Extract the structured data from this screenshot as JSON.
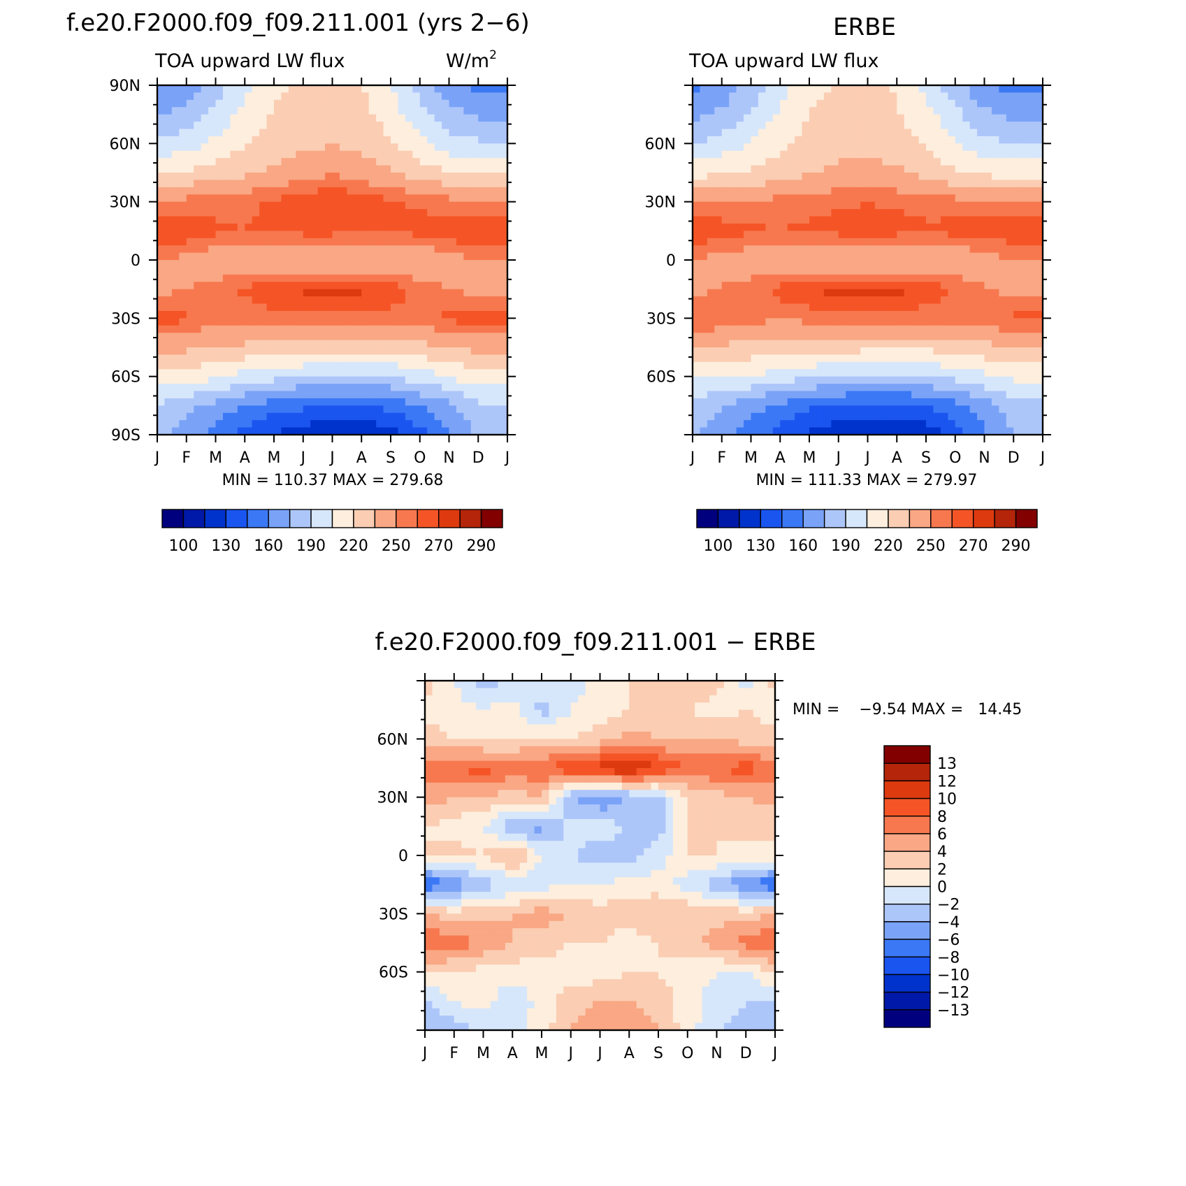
{
  "figure": {
    "panels": [
      {
        "id": "model",
        "title": "f.e20.F2000.f09_f09.211.001 (yrs 2−6)",
        "left_label": "TOA upward LW flux",
        "right_label": "W/m",
        "right_label_sup": "2",
        "lat_tick_labels": [
          "90N",
          "60N",
          "30N",
          "0",
          "30S",
          "60S",
          "90S"
        ],
        "month_labels": [
          "J",
          "F",
          "M",
          "A",
          "M",
          "J",
          "J",
          "A",
          "S",
          "O",
          "N",
          "D",
          "J"
        ],
        "stats_text": "MIN = 110.37 MAX = 279.68",
        "min": 110.37,
        "max": 279.68
      },
      {
        "id": "obs",
        "title": "ERBE",
        "left_label": "TOA upward LW flux",
        "right_label": "",
        "lat_tick_labels": [
          "",
          "60N",
          "30N",
          "0",
          "30S",
          "60S",
          ""
        ],
        "month_labels": [
          "J",
          "F",
          "M",
          "A",
          "M",
          "J",
          "J",
          "A",
          "S",
          "O",
          "N",
          "D",
          "J"
        ],
        "stats_text": "MIN = 111.33 MAX = 279.97",
        "min": 111.33,
        "max": 279.97
      },
      {
        "id": "diff",
        "title": "f.e20.F2000.f09_f09.211.001 − ERBE",
        "lat_tick_labels": [
          "",
          "60N",
          "30N",
          "0",
          "30S",
          "60S",
          ""
        ],
        "month_labels": [
          "J",
          "F",
          "M",
          "A",
          "M",
          "J",
          "J",
          "A",
          "S",
          "O",
          "N",
          "D",
          "J"
        ],
        "stats_text": "MIN =    −9.54 MAX =   14.45",
        "min": -9.54,
        "max": 14.45
      }
    ],
    "colorbar_main": {
      "levels": [
        100,
        115,
        130,
        145,
        160,
        175,
        190,
        205,
        220,
        235,
        250,
        260,
        270,
        280,
        290
      ],
      "labels": [
        "100",
        "130",
        "160",
        "190",
        "220",
        "250",
        "270",
        "290"
      ],
      "colors": [
        "#00007f",
        "#0019a8",
        "#0033cc",
        "#1a55f0",
        "#3b78f5",
        "#7aa3f7",
        "#adc6fa",
        "#d7e7fb",
        "#fdeedd",
        "#fbcdb3",
        "#f9a784",
        "#f7784f",
        "#f55526",
        "#dd3a10",
        "#b4250a",
        "#820000"
      ]
    },
    "colorbar_diff": {
      "labels": [
        "13",
        "12",
        "10",
        "8",
        "6",
        "4",
        "2",
        "0",
        "−2",
        "−4",
        "−6",
        "−8",
        "−10",
        "−12",
        "−13"
      ],
      "colors": [
        "#820000",
        "#b4250a",
        "#dd3a10",
        "#f55526",
        "#f7784f",
        "#f9a784",
        "#fbcdb3",
        "#fdeedd",
        "#d7e7fb",
        "#adc6fa",
        "#7aa3f7",
        "#3b78f5",
        "#1a55f0",
        "#0033cc",
        "#0019a8",
        "#00007f"
      ]
    }
  },
  "chart_data": [
    {
      "type": "heatmap",
      "panel": "model",
      "title": "f.e20.F2000.f09_f09.211.001 (yrs 2−6)",
      "subtitle_left": "TOA upward LW flux",
      "units": "W/m2",
      "x": [
        "J",
        "F",
        "M",
        "A",
        "M",
        "J",
        "J",
        "A",
        "S",
        "O",
        "N",
        "D",
        "J"
      ],
      "y": [
        90,
        75,
        60,
        45,
        30,
        15,
        0,
        -15,
        -30,
        -45,
        -60,
        -75,
        -90
      ],
      "xlim": [
        0,
        12
      ],
      "ylim": [
        -90,
        90
      ],
      "z": [
        [
          158,
          166,
          182,
          200,
          215,
          222,
          224,
          220,
          205,
          184,
          164,
          157,
          158
        ],
        [
          172,
          180,
          195,
          210,
          222,
          228,
          228,
          226,
          212,
          196,
          180,
          172,
          172
        ],
        [
          192,
          198,
          208,
          218,
          226,
          232,
          234,
          230,
          222,
          210,
          196,
          192,
          192
        ],
        [
          218,
          222,
          226,
          232,
          238,
          244,
          248,
          244,
          236,
          228,
          220,
          218,
          218
        ],
        [
          252,
          254,
          256,
          258,
          262,
          266,
          270,
          266,
          262,
          258,
          254,
          252,
          252
        ],
        [
          270,
          268,
          262,
          260,
          262,
          264,
          264,
          262,
          262,
          264,
          268,
          270,
          270
        ],
        [
          250,
          246,
          240,
          236,
          234,
          232,
          232,
          232,
          234,
          238,
          244,
          250,
          250
        ],
        [
          246,
          250,
          254,
          262,
          268,
          272,
          272,
          272,
          266,
          256,
          250,
          246,
          246
        ],
        [
          266,
          262,
          256,
          254,
          256,
          258,
          256,
          256,
          256,
          258,
          262,
          266,
          266
        ],
        [
          240,
          238,
          234,
          232,
          230,
          230,
          228,
          228,
          228,
          230,
          234,
          240,
          240
        ],
        [
          214,
          212,
          208,
          200,
          196,
          190,
          188,
          188,
          190,
          198,
          206,
          214,
          214
        ],
        [
          190,
          180,
          170,
          160,
          152,
          148,
          146,
          146,
          150,
          160,
          172,
          188,
          190
        ],
        [
          178,
          168,
          155,
          140,
          128,
          120,
          116,
          116,
          122,
          140,
          160,
          176,
          178
        ]
      ],
      "stats": {
        "min": 110.37,
        "max": 279.68
      }
    },
    {
      "type": "heatmap",
      "panel": "obs",
      "title": "ERBE",
      "subtitle_left": "TOA upward LW flux",
      "x": [
        "J",
        "F",
        "M",
        "A",
        "M",
        "J",
        "J",
        "A",
        "S",
        "O",
        "N",
        "D",
        "J"
      ],
      "y": [
        90,
        75,
        60,
        45,
        30,
        15,
        0,
        -15,
        -30,
        -45,
        -60,
        -75,
        -90
      ],
      "xlim": [
        0,
        12
      ],
      "ylim": [
        -90,
        90
      ],
      "z": [
        [
          155,
          165,
          180,
          198,
          214,
          222,
          222,
          218,
          202,
          180,
          162,
          155,
          155
        ],
        [
          170,
          178,
          192,
          208,
          220,
          226,
          226,
          222,
          210,
          194,
          178,
          170,
          170
        ],
        [
          190,
          196,
          206,
          216,
          224,
          230,
          230,
          226,
          218,
          206,
          194,
          190,
          190
        ],
        [
          214,
          218,
          222,
          228,
          234,
          238,
          240,
          238,
          230,
          222,
          216,
          214,
          214
        ],
        [
          248,
          250,
          252,
          254,
          256,
          258,
          260,
          258,
          256,
          254,
          250,
          248,
          248
        ],
        [
          268,
          266,
          262,
          260,
          262,
          264,
          264,
          264,
          262,
          264,
          266,
          268,
          268
        ],
        [
          250,
          246,
          240,
          236,
          234,
          232,
          232,
          232,
          234,
          238,
          244,
          250,
          250
        ],
        [
          246,
          250,
          256,
          264,
          270,
          274,
          274,
          274,
          268,
          258,
          250,
          246,
          246
        ],
        [
          262,
          260,
          254,
          252,
          254,
          256,
          254,
          254,
          254,
          256,
          260,
          262,
          262
        ],
        [
          234,
          232,
          230,
          228,
          226,
          226,
          224,
          224,
          224,
          226,
          230,
          234,
          234
        ],
        [
          208,
          206,
          204,
          198,
          194,
          188,
          186,
          186,
          188,
          196,
          202,
          208,
          208
        ],
        [
          186,
          176,
          166,
          156,
          148,
          144,
          142,
          142,
          146,
          156,
          168,
          184,
          186
        ],
        [
          176,
          166,
          152,
          138,
          126,
          118,
          114,
          114,
          120,
          138,
          158,
          174,
          176
        ]
      ],
      "stats": {
        "min": 111.33,
        "max": 279.97
      }
    },
    {
      "type": "heatmap",
      "panel": "diff",
      "title": "f.e20.F2000.f09_f09.211.001 − ERBE",
      "x": [
        "J",
        "F",
        "M",
        "A",
        "M",
        "J",
        "J",
        "A",
        "S",
        "O",
        "N",
        "D",
        "J"
      ],
      "y": [
        90,
        75,
        60,
        45,
        30,
        15,
        0,
        -15,
        -30,
        -45,
        -60,
        -75,
        -90
      ],
      "xlim": [
        0,
        12
      ],
      "ylim": [
        -90,
        90
      ],
      "z": [
        [
          3,
          0,
          -3,
          -2,
          0,
          -1,
          1,
          2,
          3,
          4,
          3,
          -1,
          3
        ],
        [
          1,
          1,
          0,
          1,
          -3,
          0,
          1,
          2,
          2,
          2,
          1,
          2,
          1
        ],
        [
          3,
          2,
          1,
          2,
          2,
          2,
          3,
          5,
          4,
          4,
          4,
          3,
          3
        ],
        [
          7,
          8,
          9,
          7,
          8,
          10,
          11,
          13,
          10,
          8,
          8,
          9,
          7
        ],
        [
          5,
          4,
          4,
          3,
          4,
          -4,
          -6,
          -4,
          -3,
          2,
          3,
          4,
          5
        ],
        [
          2,
          1,
          0,
          -4,
          -5,
          -1,
          -1,
          -2,
          -3,
          2,
          2,
          3,
          2
        ],
        [
          2,
          3,
          2,
          5,
          0,
          -2,
          -3,
          -3,
          -1,
          2,
          2,
          1,
          2
        ],
        [
          -8,
          -6,
          -3,
          -2,
          -1,
          0,
          0,
          1,
          1,
          -1,
          -3,
          -6,
          -8
        ],
        [
          4,
          3,
          3,
          4,
          5,
          4,
          3,
          3,
          4,
          4,
          3,
          3,
          4
        ],
        [
          8,
          7,
          6,
          4,
          3,
          2,
          2,
          1,
          2,
          3,
          5,
          7,
          8
        ],
        [
          2,
          2,
          1,
          1,
          1,
          1,
          1,
          2,
          2,
          1,
          0,
          0,
          2
        ],
        [
          -2,
          0,
          1,
          -2,
          1,
          3,
          4,
          4,
          3,
          1,
          -1,
          -2,
          -2
        ],
        [
          -4,
          -3,
          -2,
          -1,
          1,
          4,
          6,
          6,
          4,
          1,
          -2,
          -3,
          -4
        ]
      ],
      "stats": {
        "min": -9.54,
        "max": 14.45
      }
    }
  ]
}
